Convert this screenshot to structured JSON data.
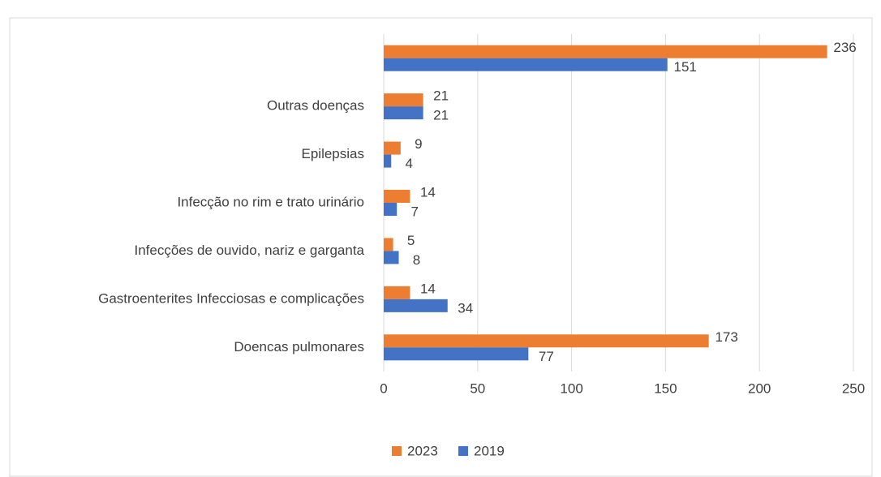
{
  "chart_data": {
    "type": "hbar",
    "categories": [
      null,
      "Outras doenças",
      "Epilepsias",
      "Infecção no rim e trato urinário",
      "Infecções de ouvido, nariz e garganta",
      "Gastroenterites Infecciosas e complicações",
      "Doencas pulmonares"
    ],
    "series": [
      {
        "name": "2023",
        "color": "#ed7d31",
        "values": [
          236,
          21,
          9,
          14,
          5,
          14,
          173
        ]
      },
      {
        "name": "2019",
        "color": "#4472c4",
        "values": [
          151,
          21,
          4,
          7,
          8,
          34,
          77
        ]
      }
    ],
    "xlim": [
      0,
      250
    ],
    "xticks": [
      0,
      50,
      100,
      150,
      200,
      250
    ],
    "grid": true,
    "legend": "bottom"
  }
}
